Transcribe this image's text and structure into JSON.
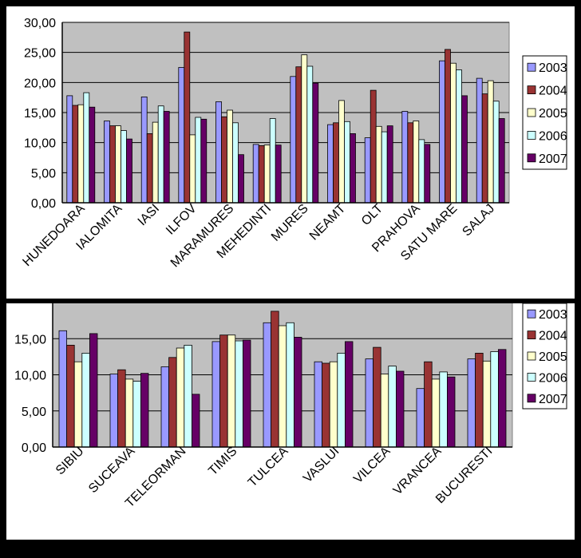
{
  "colors": {
    "2003": "#9999ff",
    "2004": "#993333",
    "2005": "#ffffcc",
    "2006": "#ccffff",
    "2007": "#660066",
    "plot_background": "#c0c0c0",
    "frame_background": "#ffffff",
    "grid": "#000000"
  },
  "chart_data": [
    {
      "type": "bar",
      "title": "",
      "xlabel": "",
      "ylabel": "",
      "ylim": [
        0,
        30
      ],
      "yticks": [
        "0,00",
        "5,00",
        "10,00",
        "15,00",
        "20,00",
        "25,00",
        "30,00"
      ],
      "grid": true,
      "legend_position": "right",
      "categories": [
        "HUNEDOARA",
        "IALOMITA",
        "IASI",
        "ILFOV",
        "MARAMURES",
        "MEHEDINTI",
        "MURES",
        "NEAMT",
        "OLT",
        "PRAHOVA",
        "SATU MARE",
        "SALAJ"
      ],
      "series": [
        {
          "name": "2003",
          "values": [
            17.8,
            13.6,
            17.6,
            22.5,
            16.8,
            9.7,
            21.0,
            13.0,
            10.8,
            15.2,
            23.6,
            20.7
          ]
        },
        {
          "name": "2004",
          "values": [
            16.2,
            12.8,
            11.5,
            28.4,
            14.3,
            9.5,
            22.6,
            13.3,
            18.7,
            13.3,
            25.5,
            18.1
          ]
        },
        {
          "name": "2005",
          "values": [
            16.3,
            12.8,
            13.4,
            11.3,
            15.4,
            9.6,
            24.6,
            17.0,
            12.7,
            13.6,
            23.2,
            20.3
          ]
        },
        {
          "name": "2006",
          "values": [
            18.3,
            12.0,
            16.1,
            14.2,
            13.3,
            14.0,
            22.7,
            13.5,
            11.8,
            10.5,
            22.1,
            16.9
          ]
        },
        {
          "name": "2007",
          "values": [
            15.9,
            10.6,
            15.2,
            13.9,
            8.0,
            9.6,
            19.9,
            11.5,
            12.8,
            9.7,
            17.8,
            14.0
          ]
        }
      ]
    },
    {
      "type": "bar",
      "title": "",
      "xlabel": "",
      "ylabel": "",
      "ylim": [
        0,
        20
      ],
      "yticks": [
        "0,00",
        "5,00",
        "10,00",
        "15,00"
      ],
      "grid": true,
      "legend_position": "right",
      "categories": [
        "SIBIU",
        "SUCEAVA",
        "TELEORMAN",
        "TIMIS",
        "TULCEA",
        "VASLUI",
        "VILCEA",
        "VRANCEA",
        "BUCURESTI"
      ],
      "series": [
        {
          "name": "2003",
          "values": [
            16.1,
            10.1,
            11.1,
            14.6,
            17.2,
            11.8,
            12.2,
            8.1,
            12.2
          ]
        },
        {
          "name": "2004",
          "values": [
            14.1,
            10.7,
            12.4,
            15.5,
            18.8,
            11.6,
            13.8,
            11.8,
            13.0
          ]
        },
        {
          "name": "2005",
          "values": [
            11.8,
            9.4,
            13.7,
            15.5,
            16.8,
            11.8,
            10.1,
            9.4,
            11.9
          ]
        },
        {
          "name": "2006",
          "values": [
            13.0,
            9.1,
            14.1,
            14.7,
            17.2,
            13.0,
            11.2,
            10.4,
            13.2
          ]
        },
        {
          "name": "2007",
          "values": [
            15.7,
            10.2,
            7.3,
            14.8,
            15.2,
            14.6,
            10.5,
            9.7,
            13.5
          ]
        }
      ]
    }
  ]
}
